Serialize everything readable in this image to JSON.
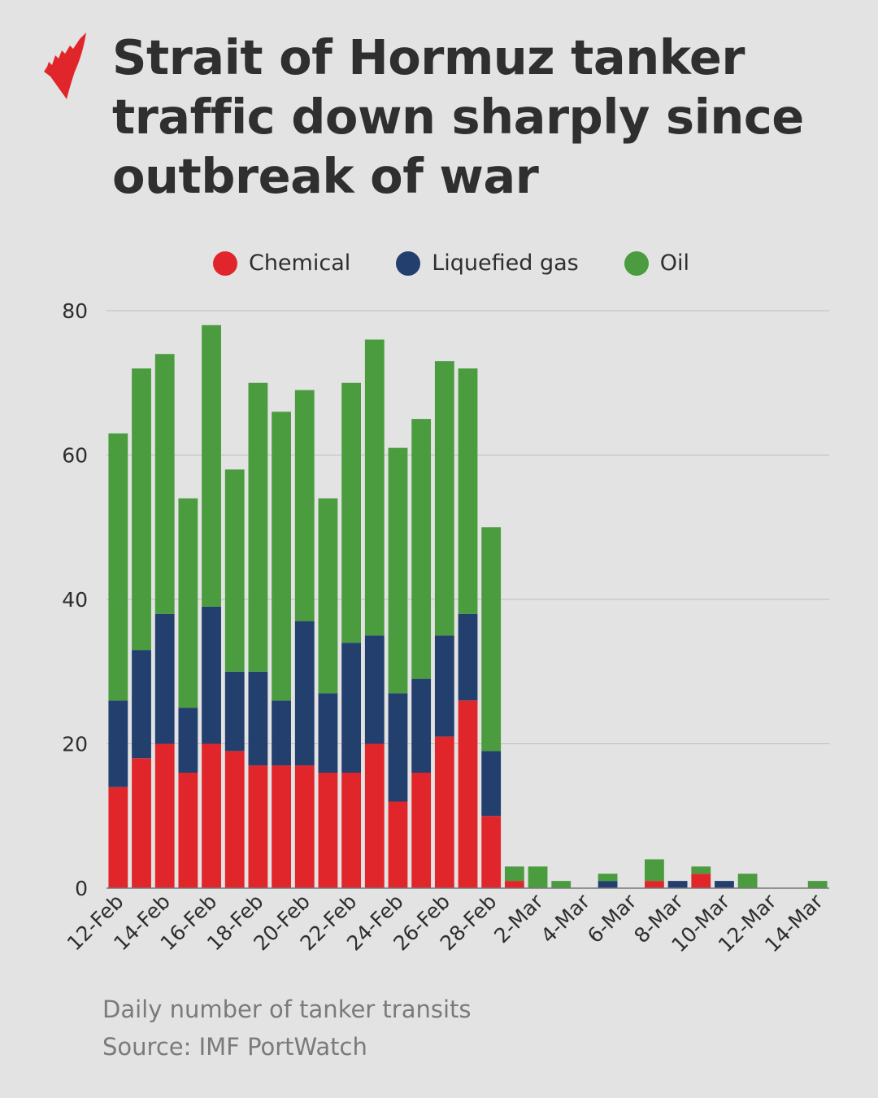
{
  "title": "Strait of Hormuz tanker traffic down sharply since outbreak of war",
  "logo": "SBS",
  "footer": {
    "note": "Daily number of tanker transits",
    "source": "Source: IMF PortWatch"
  },
  "colors": {
    "Chemical": "#e1262b",
    "Liquefied gas": "#233f6e",
    "Oil": "#4a9c3f",
    "background": "#e3e3e3",
    "grid": "#bdbdbd"
  },
  "chart_data": {
    "type": "bar",
    "stacked": true,
    "title": "Strait of Hormuz tanker traffic down sharply since outbreak of war",
    "xlabel": "",
    "ylabel": "",
    "ylim": [
      0,
      80
    ],
    "yticks": [
      0,
      20,
      40,
      60,
      80
    ],
    "grid": true,
    "legend_position": "top",
    "categories": [
      "12-Feb",
      "13-Feb",
      "14-Feb",
      "15-Feb",
      "16-Feb",
      "17-Feb",
      "18-Feb",
      "19-Feb",
      "20-Feb",
      "21-Feb",
      "22-Feb",
      "23-Feb",
      "24-Feb",
      "25-Feb",
      "26-Feb",
      "27-Feb",
      "28-Feb",
      "1-Mar",
      "2-Mar",
      "3-Mar",
      "4-Mar",
      "5-Mar",
      "6-Mar",
      "7-Mar",
      "8-Mar",
      "9-Mar",
      "10-Mar",
      "11-Mar",
      "12-Mar",
      "13-Mar",
      "14-Mar"
    ],
    "xtick_labels": [
      "12-Feb",
      "14-Feb",
      "16-Feb",
      "18-Feb",
      "20-Feb",
      "22-Feb",
      "24-Feb",
      "26-Feb",
      "28-Feb",
      "2-Mar",
      "4-Mar",
      "6-Mar",
      "8-Mar",
      "10-Mar",
      "12-Mar",
      "14-Mar"
    ],
    "series": [
      {
        "name": "Chemical",
        "values": [
          14,
          18,
          20,
          16,
          20,
          19,
          17,
          17,
          17,
          16,
          16,
          20,
          12,
          16,
          21,
          26,
          10,
          1,
          0,
          0,
          0,
          0,
          0,
          1,
          0,
          2,
          0,
          0,
          0,
          0,
          0
        ]
      },
      {
        "name": "Liquefied gas",
        "values": [
          12,
          15,
          18,
          9,
          19,
          11,
          13,
          9,
          20,
          11,
          18,
          15,
          15,
          13,
          14,
          12,
          9,
          0,
          0,
          0,
          0,
          1,
          0,
          0,
          1,
          0,
          1,
          0,
          0,
          0,
          0
        ]
      },
      {
        "name": "Oil",
        "values": [
          37,
          39,
          36,
          29,
          39,
          28,
          40,
          40,
          32,
          27,
          36,
          41,
          34,
          36,
          38,
          34,
          31,
          2,
          3,
          1,
          0,
          1,
          0,
          3,
          0,
          1,
          0,
          2,
          0,
          0,
          1
        ]
      }
    ]
  }
}
